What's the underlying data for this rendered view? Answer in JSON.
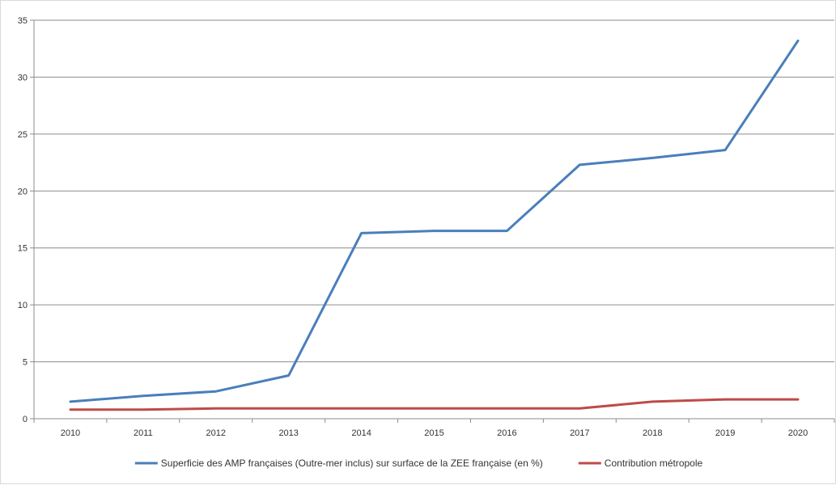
{
  "chart_data": {
    "type": "line",
    "title": "",
    "xlabel": "",
    "ylabel": "",
    "x": [
      "2010",
      "2011",
      "2012",
      "2013",
      "2014",
      "2015",
      "2016",
      "2017",
      "2018",
      "2019",
      "2020"
    ],
    "ylim": [
      0,
      35
    ],
    "yticks": [
      0,
      5,
      10,
      15,
      20,
      25,
      30,
      35
    ],
    "grid": true,
    "legend_position": "bottom",
    "series": [
      {
        "name": "Superficie des AMP françaises (Outre-mer inclus) sur surface de la ZEE française (en %)",
        "color": "#4a7ebb",
        "values": [
          1.5,
          2.0,
          2.4,
          3.8,
          16.3,
          16.5,
          16.5,
          22.3,
          22.9,
          23.6,
          33.2
        ]
      },
      {
        "name": "Contribution métropole",
        "color": "#be4b48",
        "values": [
          0.8,
          0.8,
          0.9,
          0.9,
          0.9,
          0.9,
          0.9,
          0.9,
          1.5,
          1.7,
          1.7
        ]
      }
    ]
  }
}
